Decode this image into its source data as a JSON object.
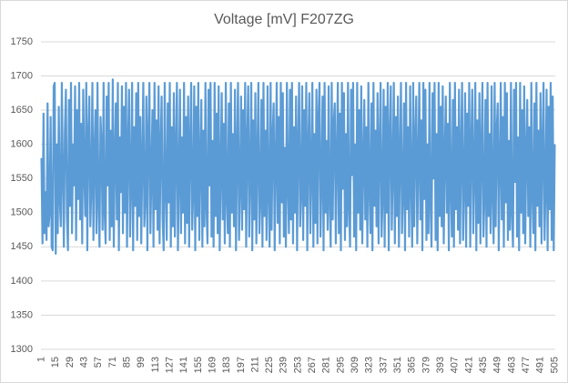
{
  "chart_data": {
    "type": "line",
    "title": "Voltage [mV] F207ZG",
    "color": "#5b9bd5",
    "grid": true,
    "ylim": [
      1300,
      1750
    ],
    "yticks": [
      1300,
      1350,
      1400,
      1450,
      1500,
      1550,
      1600,
      1650,
      1700,
      1750
    ],
    "categories": [
      1,
      null,
      null,
      null,
      null,
      null,
      null,
      null,
      null,
      null,
      null,
      null,
      null,
      null,
      15,
      null,
      null,
      null,
      null,
      null,
      null,
      null,
      null,
      null,
      null,
      null,
      null,
      null,
      29,
      null,
      null,
      null,
      null,
      null,
      null,
      null,
      null,
      null,
      null,
      null,
      null,
      null,
      43,
      null,
      null,
      null,
      null,
      null,
      null,
      null,
      null,
      null,
      null,
      null,
      null,
      null,
      57,
      null,
      null,
      null,
      null,
      null,
      null,
      null,
      null,
      null,
      null,
      null,
      null,
      null,
      71,
      null,
      null,
      null,
      null,
      null,
      null,
      null,
      null,
      null,
      null,
      null,
      null,
      null,
      85,
      null,
      null,
      null,
      null,
      null,
      null,
      null,
      null,
      null,
      null,
      null,
      null,
      null,
      99,
      null,
      null,
      null,
      null,
      null,
      null,
      null,
      null,
      null,
      null,
      null,
      null,
      null,
      113,
      null,
      null,
      null,
      null,
      null,
      null,
      null,
      null,
      null,
      null,
      null,
      null,
      null,
      127,
      null,
      null,
      null,
      null,
      null,
      null,
      null,
      null,
      null,
      null,
      null,
      null,
      null,
      141,
      null,
      null,
      null,
      null,
      null,
      null,
      null,
      null,
      null,
      null,
      null,
      null,
      null,
      155,
      null,
      null,
      null,
      null,
      null,
      null,
      null,
      null,
      null,
      null,
      null,
      null,
      null,
      169,
      null,
      null,
      null,
      null,
      null,
      null,
      null,
      null,
      null,
      null,
      null,
      null,
      null,
      183,
      null,
      null,
      null,
      null,
      null,
      null,
      null,
      null,
      null,
      null,
      null,
      null,
      null,
      197,
      null,
      null,
      null,
      null,
      null,
      null,
      null,
      null,
      null,
      null,
      null,
      null,
      null,
      211,
      null,
      null,
      null,
      null,
      null,
      null,
      null,
      null,
      null,
      null,
      null,
      null,
      null,
      225,
      null,
      null,
      null,
      null,
      null,
      null,
      null,
      null,
      null,
      null,
      null,
      null,
      null,
      239,
      null,
      null,
      null,
      null,
      null,
      null,
      null,
      null,
      null,
      null,
      null,
      null,
      null,
      253,
      null,
      null,
      null,
      null,
      null,
      null,
      null,
      null,
      null,
      null,
      null,
      null,
      null,
      267,
      null,
      null,
      null,
      null,
      null,
      null,
      null,
      null,
      null,
      null,
      null,
      null,
      null,
      281,
      null,
      null,
      null,
      null,
      null,
      null,
      null,
      null,
      null,
      null,
      null,
      null,
      null,
      295,
      null,
      null,
      null,
      null,
      null,
      null,
      null,
      null,
      null,
      null,
      null,
      null,
      null,
      309,
      null,
      null,
      null,
      null,
      null,
      null,
      null,
      null,
      null,
      null,
      null,
      null,
      null,
      323,
      null,
      null,
      null,
      null,
      null,
      null,
      null,
      null,
      null,
      null,
      null,
      null,
      null,
      337,
      null,
      null,
      null,
      null,
      null,
      null,
      null,
      null,
      null,
      null,
      null,
      null,
      null,
      351,
      null,
      null,
      null,
      null,
      null,
      null,
      null,
      null,
      null,
      null,
      null,
      null,
      null,
      365,
      null,
      null,
      null,
      null,
      null,
      null,
      null,
      null,
      null,
      null,
      null,
      null,
      null,
      379,
      null,
      null,
      null,
      null,
      null,
      null,
      null,
      null,
      null,
      null,
      null,
      null,
      null,
      393,
      null,
      null,
      null,
      null,
      null,
      null,
      null,
      null,
      null,
      null,
      null,
      null,
      null,
      407,
      null,
      null,
      null,
      null,
      null,
      null,
      null,
      null,
      null,
      null,
      null,
      null,
      null,
      421,
      null,
      null,
      null,
      null,
      null,
      null,
      null,
      null,
      null,
      null,
      null,
      null,
      null,
      435,
      null,
      null,
      null,
      null,
      null,
      null,
      null,
      null,
      null,
      null,
      null,
      null,
      null,
      449,
      null,
      null,
      null,
      null,
      null,
      null,
      null,
      null,
      null,
      null,
      null,
      null,
      null,
      463,
      null,
      null,
      null,
      null,
      null,
      null,
      null,
      null,
      null,
      null,
      null,
      null,
      null,
      477,
      null,
      null,
      null,
      null,
      null,
      null,
      null,
      null,
      null,
      null,
      null,
      null,
      null,
      491,
      null,
      null,
      null,
      null,
      null,
      null,
      null,
      null,
      null,
      null,
      null,
      null,
      null,
      505
    ],
    "values": [
      1580,
      1455,
      1645,
      1470,
      1530,
      1460,
      1660,
      1480,
      1500,
      1640,
      1450,
      1445,
      1685,
      1690,
      1440,
      1600,
      1470,
      1655,
      1520,
      1480,
      1690,
      1560,
      1450,
      1620,
      1680,
      1495,
      1445,
      1665,
      1510,
      1690,
      1470,
      1600,
      1540,
      1685,
      1460,
      1650,
      1520,
      1690,
      1490,
      1630,
      1455,
      1680,
      1560,
      1495,
      1690,
      1445,
      1610,
      1670,
      1480,
      1535,
      1690,
      1460,
      1585,
      1650,
      1470,
      1690,
      1520,
      1450,
      1640,
      1600,
      1475,
      1690,
      1500,
      1455,
      1670,
      1540,
      1690,
      1460,
      1620,
      1480,
      1695,
      1450,
      1580,
      1660,
      1490,
      1690,
      1445,
      1610,
      1530,
      1685,
      1470,
      1655,
      1500,
      1690,
      1450,
      1600,
      1680,
      1465,
      1545,
      1690,
      1445,
      1625,
      1510,
      1675,
      1460,
      1690,
      1495,
      1640,
      1455,
      1580,
      1690,
      1480,
      1520,
      1670,
      1445,
      1615,
      1690,
      1470,
      1560,
      1650,
      1450,
      1690,
      1505,
      1635,
      1475,
      1685,
      1455,
      1595,
      1670,
      1490,
      1445,
      1690,
      1540,
      1460,
      1660,
      1515,
      1690,
      1450,
      1625,
      1480,
      1675,
      1465,
      1590,
      1690,
      1445,
      1550,
      1680,
      1470,
      1610,
      1500,
      1690,
      1455,
      1640,
      1485,
      1670,
      1450,
      1600,
      1690,
      1475,
      1530,
      1685,
      1445,
      1655,
      1495,
      1690,
      1460,
      1575,
      1665,
      1450,
      1620,
      1480,
      1690,
      1510,
      1455,
      1680,
      1540,
      1690,
      1465,
      1605,
      1450,
      1690,
      1495,
      1645,
      1470,
      1685,
      1445,
      1560,
      1675,
      1490,
      1630,
      1455,
      1690,
      1525,
      1470,
      1660,
      1450,
      1690,
      1500,
      1615,
      1480,
      1680,
      1445,
      1590,
      1690,
      1460,
      1540,
      1670,
      1475,
      1650,
      1505,
      1690,
      1450,
      1600,
      1685,
      1465,
      1555,
      1690,
      1445,
      1635,
      1490,
      1675,
      1455,
      1580,
      1690,
      1470,
      1520,
      1665,
      1450,
      1690,
      1495,
      1620,
      1460,
      1685,
      1535,
      1450,
      1690,
      1475,
      1610,
      1660,
      1445,
      1570,
      1690,
      1485,
      1640,
      1455,
      1690,
      1515,
      1675,
      1465,
      1595,
      1450,
      1690,
      1545,
      1470,
      1680,
      1490,
      1690,
      1455,
      1625,
      1500,
      1670,
      1445,
      1600,
      1690,
      1480,
      1530,
      1685,
      1460,
      1650,
      1510,
      1690,
      1445,
      1590,
      1675,
      1470,
      1560,
      1690,
      1450,
      1615,
      1485,
      1680,
      1455,
      1640,
      1690,
      1465,
      1550,
      1670,
      1445,
      1690,
      1500,
      1605,
      1475,
      1685,
      1520,
      1450,
      1690,
      1490,
      1630,
      1660,
      1455,
      1580,
      1690,
      1470,
      1645,
      1445,
      1690,
      1535,
      1675,
      1460,
      1615,
      1480,
      1690,
      1510,
      1450,
      1680,
      1555,
      1690,
      1465,
      1600,
      1445,
      1690,
      1500,
      1650,
      1475,
      1685,
      1455,
      1570,
      1665,
      1490,
      1625,
      1450,
      1690,
      1540,
      1470,
      1660,
      1445,
      1690,
      1510,
      1620,
      1480,
      1675,
      1455,
      1595,
      1690,
      1465,
      1525,
      1680,
      1450,
      1655,
      1500,
      1690,
      1445,
      1610,
      1685,
      1475,
      1565,
      1690,
      1455,
      1640,
      1495,
      1670,
      1450,
      1585,
      1690,
      1470,
      1530,
      1660,
      1445,
      1690,
      1505,
      1625,
      1465,
      1685,
      1545,
      1450,
      1690,
      1480,
      1605,
      1670,
      1455,
      1575,
      1690,
      1490,
      1635,
      1445,
      1690,
      1520,
      1680,
      1460,
      1600,
      1470,
      1690,
      1515,
      1450,
      1675,
      1550,
      1690,
      1460,
      1615,
      1445,
      1690,
      1495,
      1655,
      1480,
      1685,
      1455,
      1580,
      1670,
      1500,
      1630,
      1445,
      1690,
      1535,
      1465,
      1665,
      1450,
      1690,
      1505,
      1625,
      1475,
      1680,
      1455,
      1590,
      1690,
      1460,
      1540,
      1675,
      1450,
      1645,
      1510,
      1690,
      1450,
      1600,
      1680,
      1470,
      1560,
      1690,
      1445,
      1635,
      1485,
      1675,
      1455,
      1595,
      1690,
      1465,
      1525,
      1665,
      1450,
      1690,
      1495,
      1615,
      1470,
      1685,
      1530,
      1455,
      1690,
      1480,
      1620,
      1660,
      1445,
      1570,
      1690,
      1490,
      1640,
      1450,
      1690,
      1515,
      1675,
      1460,
      1605,
      1475,
      1690,
      1500,
      1450,
      1680,
      1545,
      1690,
      1465,
      1610,
      1445,
      1690,
      1500,
      1650,
      1470,
      1685,
      1455,
      1585,
      1665,
      1495,
      1625,
      1450,
      1690,
      1530,
      1470,
      1660,
      1445,
      1690,
      1510,
      1620,
      1480,
      1675,
      1455,
      1600,
      1690,
      1460,
      1535,
      1680,
      1445,
      1655,
      1505,
      1690,
      1460,
      1670,
      1445,
      1600
    ]
  }
}
